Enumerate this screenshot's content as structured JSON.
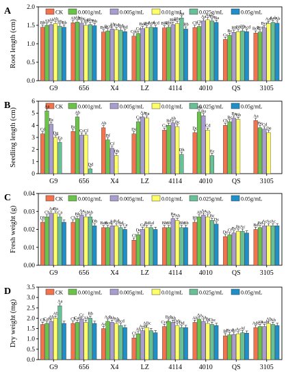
{
  "figure": {
    "legend_entries": [
      "CK",
      "0.001g/mL",
      "0.005g/mL",
      "0.01g/mL",
      "0.025g/mL",
      "0.05g/mL"
    ],
    "colors": [
      "#f4724c",
      "#6cc34a",
      "#a99ccf",
      "#ffff66",
      "#66c197",
      "#1e8fc8"
    ],
    "colors_note": "series colors in legend order"
  },
  "chart_data": [
    {
      "type": "bar",
      "panel_label": "A",
      "ylabel": "Root length (cm)",
      "ylim": [
        0,
        2.0
      ],
      "yticks": [
        "0.0",
        "0.5",
        "1.0",
        "1.5",
        "2.0"
      ],
      "categories": [
        "G9",
        "656",
        "X4",
        "LZ",
        "4114",
        "4010",
        "QS",
        "3105"
      ],
      "legend": "top",
      "series": [
        {
          "name": "CK",
          "values": [
            1.45,
            1.57,
            1.32,
            1.21,
            1.43,
            1.44,
            1.12,
            1.29
          ],
          "labels": [
            "Bb",
            "Ab",
            "Bcd",
            "Cdc",
            "Bbc",
            "Cb",
            "Cc",
            "Bcd"
          ]
        },
        {
          "name": "0.001g/mL",
          "values": [
            1.5,
            1.59,
            1.35,
            1.28,
            1.45,
            1.47,
            1.23,
            1.32
          ],
          "labels": [
            "Ab",
            "Ab",
            "Bcd",
            "Cd",
            "Bbc",
            "Cb",
            "Bc",
            "Bcd"
          ]
        },
        {
          "name": "0.005g/mL",
          "values": [
            1.52,
            1.56,
            1.4,
            1.41,
            1.52,
            1.62,
            1.31,
            1.43
          ],
          "labels": [
            "Ab",
            "Bbc",
            "Ab",
            "Bde",
            "Bbc",
            "Aa",
            "Bb",
            "Bcd"
          ]
        },
        {
          "name": "0.01g/mL",
          "values": [
            1.55,
            1.5,
            1.38,
            1.43,
            1.55,
            1.65,
            1.33,
            1.55
          ],
          "labels": [
            "Ab",
            "Bb",
            "Bd",
            "Bd",
            "Bbc",
            "Aa",
            "Bb",
            "Aab"
          ]
        },
        {
          "name": "0.025g/mL",
          "values": [
            1.48,
            1.52,
            1.37,
            1.45,
            1.7,
            1.62,
            1.35,
            1.58
          ],
          "labels": [
            "Bb",
            "Bbc",
            "Bd",
            "Acd",
            "Aa",
            "Ba",
            "Bb",
            "Aab"
          ]
        },
        {
          "name": "0.05g/mL",
          "values": [
            1.45,
            1.49,
            1.33,
            1.44,
            1.4,
            1.58,
            1.33,
            1.56
          ],
          "labels": [
            "Bb",
            "Bb",
            "Bd",
            "Acd",
            "Bb",
            "Ba",
            "Acd",
            "Ab"
          ]
        }
      ]
    },
    {
      "type": "bar",
      "panel_label": "B",
      "ylabel": "Seedling length (cm)",
      "ylim": [
        0,
        6
      ],
      "yticks": [
        "0",
        "1",
        "2",
        "3",
        "4",
        "5",
        "6"
      ],
      "categories": [
        "G9",
        "656",
        "X4",
        "LZ",
        "4114",
        "4010",
        "QS",
        "3105"
      ],
      "legend": "top",
      "series": [
        {
          "name": "CK",
          "values": [
            3.3,
            3.5,
            3.8,
            3.3,
            3.6,
            3.4,
            4.0,
            4.4
          ],
          "labels": [
            "Cd",
            "Bc",
            "Ab",
            "Dd",
            "Ca",
            "Dc",
            "Cb",
            "Aa"
          ]
        },
        {
          "name": "0.001g/mL",
          "values": [
            5.2,
            4.7,
            2.8,
            4.3,
            4.0,
            5.1,
            4.3,
            3.8
          ],
          "labels": [
            "Aa",
            "Ab",
            "Bf",
            "Ca",
            "Bd",
            "Ab",
            "Bc",
            "Bc"
          ]
        },
        {
          "name": "0.005g/mL",
          "values": [
            4.1,
            3.2,
            2.1,
            4.7,
            4.2,
            4.8,
            4.6,
            3.7
          ],
          "labels": [
            "Bc",
            "Cc",
            "Cf",
            "Aa",
            "Ab",
            "Ba",
            "Ba",
            "Cd"
          ]
        },
        {
          "name": "0.01g/mL",
          "values": [
            3.0,
            3.2,
            1.5,
            4.6,
            3.9,
            3.6,
            4.5,
            3.4
          ],
          "labels": [
            "Dg",
            "Cf",
            "Dh",
            "Ba",
            "Bc",
            "Cd",
            "Bb",
            "De"
          ]
        },
        {
          "name": "0.025g/mL",
          "values": [
            2.6,
            0.4,
            0,
            0,
            1.6,
            1.5,
            0,
            0
          ],
          "labels": [
            "Ea",
            "Dd",
            "",
            "",
            "Dh",
            "Ec",
            "",
            ""
          ]
        },
        {
          "name": "0.05g/mL",
          "values": [
            0,
            0,
            0,
            0,
            0,
            0,
            0,
            0
          ],
          "labels": [
            "",
            "",
            "",
            "",
            "",
            "",
            "",
            ""
          ]
        }
      ]
    },
    {
      "type": "bar",
      "panel_label": "C",
      "ylabel": "Fresh weight (g)",
      "ylim": [
        0,
        0.04
      ],
      "yticks": [
        "0.00",
        "0.01",
        "0.02",
        "0.03",
        "0.04"
      ],
      "categories": [
        "G9",
        "656",
        "X4",
        "LZ",
        "4114",
        "4010",
        "QS",
        "3105"
      ],
      "legend": "top",
      "series": [
        {
          "name": "CK",
          "values": [
            0.024,
            0.024,
            0.021,
            0.014,
            0.021,
            0.024,
            0.016,
            0.02
          ],
          "labels": [
            "Db",
            "Cb",
            "Bcd",
            "Cf",
            "Bb",
            "Bb",
            "De",
            "Bd"
          ]
        },
        {
          "name": "0.001g/mL",
          "values": [
            0.027,
            0.026,
            0.021,
            0.017,
            0.021,
            0.027,
            0.017,
            0.021
          ],
          "labels": [
            "Cb",
            "Bb",
            "Bcd",
            "De",
            "Bb",
            "Ab",
            "Cf",
            "Bd"
          ]
        },
        {
          "name": "0.005g/mL",
          "values": [
            0.029,
            0.028,
            0.022,
            0.02,
            0.026,
            0.028,
            0.018,
            0.022
          ],
          "labels": [
            "Aa",
            "Aa",
            "Ad",
            "Cd",
            "Ba",
            "Aa",
            "Bc",
            "Ac"
          ]
        },
        {
          "name": "0.01g/mL",
          "values": [
            0.029,
            0.027,
            0.022,
            0.021,
            0.025,
            0.027,
            0.019,
            0.022
          ],
          "labels": [
            "Ba",
            "Ab",
            "Ad",
            "Bd",
            "Ab",
            "Ab",
            "Bc",
            "Ac"
          ]
        },
        {
          "name": "0.025g/mL",
          "values": [
            0.027,
            0.027,
            0.021,
            0.021,
            0.021,
            0.025,
            0.019,
            0.022
          ],
          "labels": [
            "Ca",
            "Ab",
            "Bd",
            "Ad",
            "Bb",
            "Bc",
            "Ac",
            "Ac"
          ]
        },
        {
          "name": "0.05g/mL",
          "values": [
            0.024,
            0.022,
            0.02,
            0.02,
            0.021,
            0.023,
            0.018,
            0.022
          ],
          "labels": [
            "",
            "Db",
            "Ce",
            "",
            "Bb",
            "Dc",
            "",
            ""
          ]
        }
      ]
    },
    {
      "type": "bar",
      "panel_label": "D",
      "ylabel": "Dry weight (mg)",
      "ylim": [
        0,
        3.5
      ],
      "yticks": [
        "0.0",
        "0.5",
        "1.0",
        "1.5",
        "2.0",
        "2.5",
        "3.0",
        "3.5"
      ],
      "categories": [
        "G9",
        "656",
        "X4",
        "LZ",
        "4114",
        "4010",
        "QS",
        "3105"
      ],
      "legend": "top",
      "series": [
        {
          "name": "CK",
          "values": [
            1.7,
            1.75,
            1.5,
            1.05,
            1.6,
            1.8,
            1.15,
            1.55
          ],
          "labels": [
            "Cb",
            "Cb",
            "Ac",
            "Cf",
            "Ccd",
            "Ab",
            "Bf",
            "Adc"
          ]
        },
        {
          "name": "0.001g/mL",
          "values": [
            1.75,
            1.8,
            1.85,
            1.25,
            1.85,
            1.95,
            1.2,
            1.6
          ],
          "labels": [
            "Cab",
            "Cab",
            "Aab",
            "Ab",
            "Bab",
            "Aa",
            "Bcd",
            "Ab"
          ]
        },
        {
          "name": "0.005g/mL",
          "values": [
            1.85,
            1.95,
            1.8,
            1.4,
            1.8,
            1.85,
            1.22,
            1.6
          ],
          "labels": [
            "Ab",
            "Cc",
            "Ab",
            "Aab",
            "Ab",
            "Aa",
            "Ac",
            "Aab"
          ]
        },
        {
          "name": "0.01g/mL",
          "values": [
            2.0,
            1.8,
            1.75,
            1.55,
            1.65,
            1.75,
            1.25,
            1.75
          ],
          "labels": [
            "Ab",
            "Ab",
            "Ab",
            "ABc",
            "Ddc",
            "Bc",
            "Ac",
            "Ab"
          ]
        },
        {
          "name": "0.025g/mL",
          "values": [
            2.6,
            2.0,
            1.65,
            1.4,
            1.55,
            1.7,
            1.3,
            1.7
          ],
          "labels": [
            "Aa",
            "Bb",
            "Bcd",
            "",
            "Dd",
            "Cbc",
            "Af",
            "Ab"
          ]
        },
        {
          "name": "0.05g/mL",
          "values": [
            1.75,
            1.75,
            1.55,
            1.3,
            1.55,
            1.65,
            1.28,
            1.65
          ],
          "labels": [
            "",
            "",
            "",
            "",
            "",
            "",
            "",
            ""
          ]
        }
      ]
    }
  ]
}
